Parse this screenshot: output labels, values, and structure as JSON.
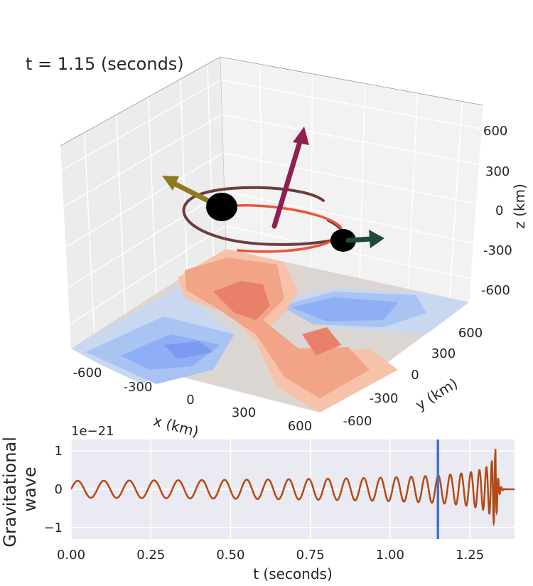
{
  "colors": {
    "pane_light": "#f2f2f2",
    "pane_side": "#ececec",
    "grid": "#ffffff",
    "orbit_dark": "#6b3e3e",
    "orbit_red": "#e8563a",
    "spin_up": "#8e1f4f",
    "spin_left": "#8f7a1e",
    "spin_right": "#1f4a35",
    "wave": "#b34a15",
    "marker": "#4472c4",
    "axes_bg": "#eaeaf2",
    "warm_1": "#f6c3aa",
    "warm_2": "#f2a487",
    "warm_3": "#e8806a",
    "cool_1": "#c9d8f0",
    "cool_2": "#a9c3f3",
    "cool_3": "#8eaef5",
    "cool_4": "#7b9af0",
    "neutral": "#dcd6d2"
  },
  "chart_data": [
    {
      "type": "3d-line",
      "time_label": "t = 1.15 (seconds)",
      "xlabel": "x (km)",
      "ylabel": "y (km)",
      "zlabel": "z (km)",
      "xticks": [
        "-600",
        "-300",
        "0",
        "300",
        "600"
      ],
      "yticks": [
        "-600",
        "-300",
        "0",
        "300",
        "600"
      ],
      "zticks": [
        "600",
        "300",
        "0",
        "-300",
        "-600"
      ],
      "xlim": [
        -750,
        750
      ],
      "ylim": [
        -750,
        750
      ],
      "zlim": [
        -750,
        750
      ],
      "grid": true,
      "series": [
        {
          "kind": "orbit",
          "color": "orbit_dark"
        },
        {
          "kind": "orbit",
          "color": "orbit_red"
        },
        {
          "kind": "spin-vector",
          "color": "spin_up"
        },
        {
          "kind": "spin-vector",
          "color": "spin_left"
        },
        {
          "kind": "spin-vector",
          "color": "spin_right"
        },
        {
          "kind": "contour-floor",
          "colormap": "coolwarm"
        }
      ]
    },
    {
      "type": "line",
      "scale_label": "1e−21",
      "ylabel": "Gravitational\nwave",
      "xlabel": "t (seconds)",
      "xlim": [
        0.0,
        1.39
      ],
      "ylim": [
        -1.3,
        1.3
      ],
      "xticks": [
        "0.00",
        "0.25",
        "0.50",
        "0.75",
        "1.00",
        "1.25"
      ],
      "yticks": [
        "1",
        "0",
        "−1"
      ],
      "current_time": 1.15,
      "merger_time": 1.33,
      "grid": true,
      "legend": "none"
    }
  ]
}
